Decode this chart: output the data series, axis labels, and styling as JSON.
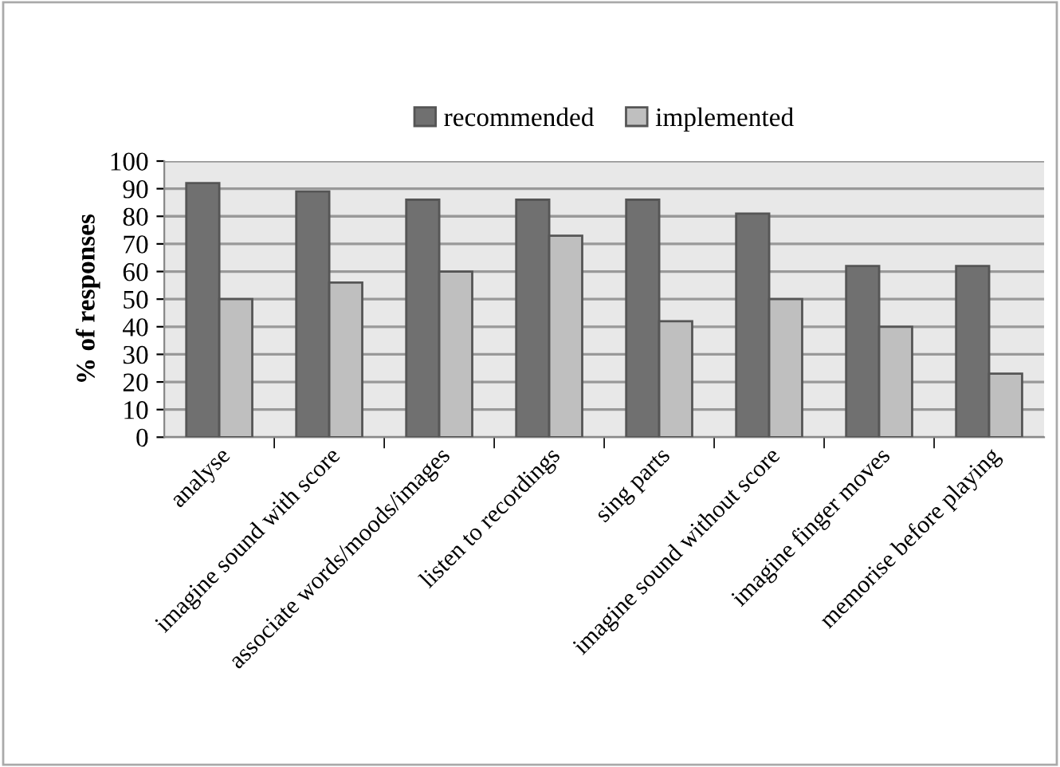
{
  "chart_data": {
    "type": "bar",
    "ylabel": "% of responses",
    "categories": [
      "analyse",
      "imagine sound with score",
      "associate words/moods/images",
      "listen to recordings",
      "sing parts",
      "imagine sound without score",
      "imagine finger moves",
      "memorise before playing"
    ],
    "series": [
      {
        "name": "recommended",
        "color": "#707070",
        "values": [
          92,
          89,
          86,
          86,
          86,
          81,
          62,
          62
        ]
      },
      {
        "name": "implemented",
        "color": "#bfbfbf",
        "values": [
          50,
          56,
          60,
          73,
          42,
          50,
          40,
          23
        ]
      }
    ],
    "ylim": [
      0,
      100
    ],
    "yticks": [
      0,
      10,
      20,
      30,
      40,
      50,
      60,
      70,
      80,
      90,
      100
    ],
    "grid": "y",
    "legend": "top"
  }
}
